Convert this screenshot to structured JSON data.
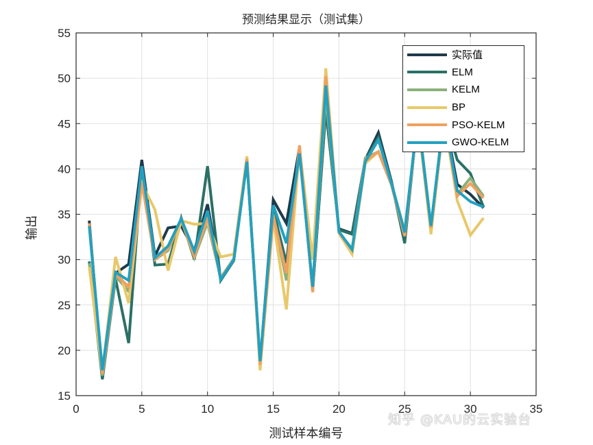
{
  "chart_data": {
    "type": "line",
    "title": "预测结果显示（测试集）",
    "xlabel": "测试样本编号",
    "ylabel": "输出",
    "xlim": [
      0,
      35
    ],
    "ylim": [
      15,
      55
    ],
    "xticks": [
      0,
      5,
      10,
      15,
      20,
      25,
      30,
      35
    ],
    "yticks": [
      15,
      20,
      25,
      30,
      35,
      40,
      45,
      50,
      55
    ],
    "grid": true,
    "legend_position": "upper right",
    "x": [
      1,
      2,
      3,
      4,
      5,
      6,
      7,
      8,
      9,
      10,
      11,
      12,
      13,
      14,
      15,
      16,
      17,
      18,
      19,
      20,
      21,
      22,
      23,
      24,
      25,
      26,
      27,
      28,
      29,
      30,
      31
    ],
    "series": [
      {
        "name": "实际值",
        "color": "#1d3a4a",
        "values": [
          34.3,
          16.9,
          28.5,
          29.5,
          41.0,
          30.4,
          33.5,
          33.7,
          31.0,
          36.1,
          27.8,
          30.0,
          41.0,
          18.5,
          36.6,
          34.0,
          42.4,
          26.5,
          46.5,
          33.4,
          32.9,
          41.0,
          44.0,
          38.6,
          32.0,
          46.0,
          33.5,
          46.0,
          38.3,
          37.2,
          35.7
        ]
      },
      {
        "name": "ELM",
        "color": "#2a7066",
        "values": [
          29.8,
          16.8,
          27.9,
          20.8,
          40.3,
          29.4,
          29.5,
          34.6,
          30.0,
          40.3,
          27.7,
          29.9,
          41.0,
          18.4,
          35.5,
          29.6,
          42.5,
          26.6,
          46.6,
          33.3,
          32.8,
          41.0,
          43.5,
          38.5,
          31.8,
          46.0,
          33.6,
          46.0,
          41.0,
          39.5,
          35.8
        ]
      },
      {
        "name": "KELM",
        "color": "#8ab07a",
        "values": [
          29.6,
          17.2,
          28.2,
          26.5,
          38.9,
          30.0,
          31.0,
          34.4,
          30.2,
          34.1,
          28.0,
          30.1,
          40.8,
          18.6,
          35.0,
          27.7,
          42.1,
          26.8,
          48.0,
          33.0,
          31.2,
          41.2,
          41.9,
          38.2,
          32.6,
          45.8,
          33.4,
          45.8,
          37.2,
          39.0,
          37.0
        ]
      },
      {
        "name": "BP",
        "color": "#e8c86a",
        "values": [
          29.2,
          17.6,
          30.3,
          25.2,
          38.4,
          35.5,
          28.8,
          34.3,
          33.9,
          34.0,
          30.3,
          30.6,
          41.4,
          17.8,
          34.5,
          24.5,
          42.3,
          30.0,
          51.1,
          32.9,
          30.6,
          40.6,
          41.9,
          38.4,
          33.2,
          45.6,
          32.8,
          45.6,
          36.5,
          32.7,
          34.6
        ]
      },
      {
        "name": "PSO-KELM",
        "color": "#f0a060",
        "values": [
          34.0,
          17.4,
          28.4,
          27.0,
          38.5,
          30.0,
          31.2,
          34.5,
          30.4,
          34.6,
          27.9,
          30.0,
          41.1,
          18.4,
          34.8,
          28.5,
          42.6,
          26.4,
          50.2,
          33.0,
          31.1,
          40.9,
          41.9,
          38.3,
          32.6,
          45.8,
          33.5,
          45.8,
          37.0,
          38.4,
          36.8
        ]
      },
      {
        "name": "GWO-KELM",
        "color": "#23a0c0",
        "values": [
          33.7,
          17.8,
          28.6,
          27.7,
          40.3,
          30.2,
          31.5,
          34.5,
          30.9,
          35.4,
          27.8,
          30.0,
          40.8,
          18.8,
          36.0,
          31.8,
          41.7,
          27.0,
          49.2,
          33.1,
          31.1,
          40.8,
          43.2,
          38.4,
          33.0,
          45.9,
          33.7,
          45.9,
          37.6,
          36.4,
          35.8
        ]
      }
    ]
  },
  "labels": {
    "title": "预测结果显示（测试集）",
    "xlabel": "测试样本编号",
    "ylabel": "输出",
    "watermark": "知乎 @KAU的云实验台"
  },
  "legend": [
    {
      "label": "实际值",
      "color": "#1d3a4a"
    },
    {
      "label": "ELM",
      "color": "#2a7066"
    },
    {
      "label": "KELM",
      "color": "#8ab07a"
    },
    {
      "label": "BP",
      "color": "#e8c86a"
    },
    {
      "label": "PSO-KELM",
      "color": "#f0a060"
    },
    {
      "label": "GWO-KELM",
      "color": "#23a0c0"
    }
  ]
}
